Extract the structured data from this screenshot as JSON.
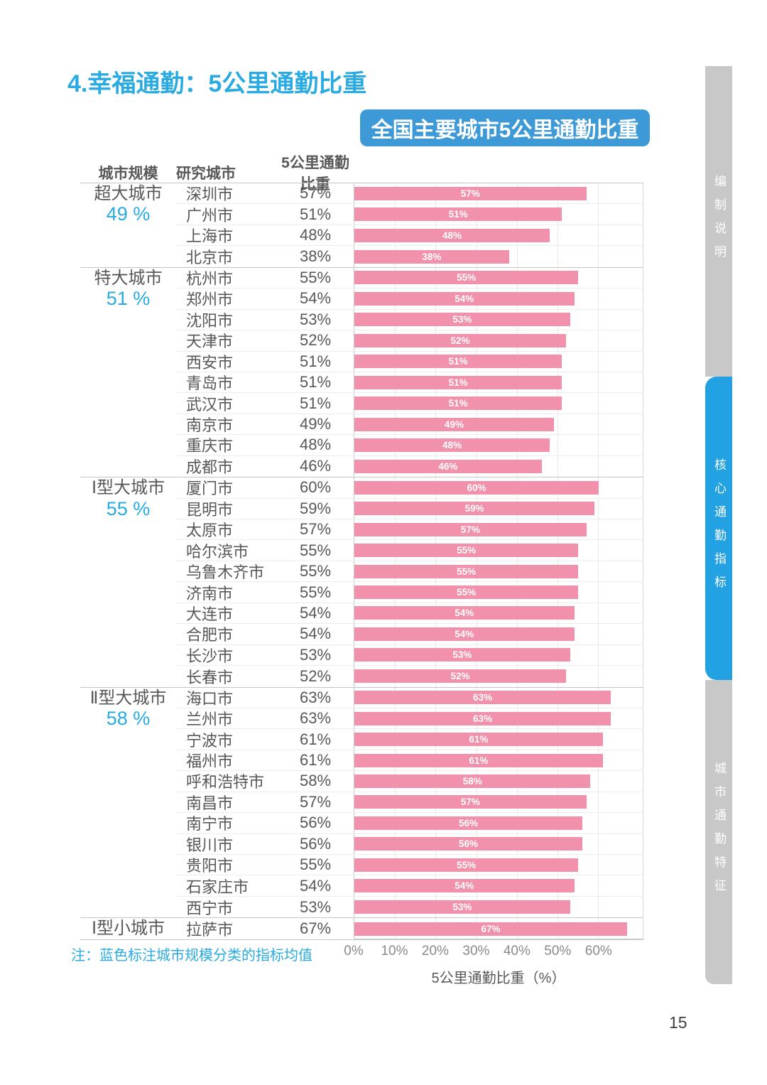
{
  "page": {
    "title": "4.幸福通勤：5公里通勤比重",
    "page_number": "15",
    "note": "注：蓝色标注城市规模分类的指标均值"
  },
  "banner": {
    "text": "全国主要城市5公里通勤比重"
  },
  "table": {
    "headers": [
      "城市规模",
      "研究城市",
      "5公里通勤比重"
    ]
  },
  "chart_data": {
    "type": "bar",
    "title": "全国主要城市5公里通勤比重",
    "xlabel": "5公里通勤比重（%）",
    "unit": "%",
    "xlim": [
      0,
      71
    ],
    "ticks": [
      0,
      10,
      20,
      30,
      40,
      50,
      60
    ],
    "grid": true,
    "bar_color": "#F191AC",
    "groups": [
      {
        "scale": "超大城市",
        "average": 49,
        "cities": [
          {
            "name": "深圳市",
            "value": 57
          },
          {
            "name": "广州市",
            "value": 51
          },
          {
            "name": "上海市",
            "value": 48
          },
          {
            "name": "北京市",
            "value": 38
          }
        ]
      },
      {
        "scale": "特大城市",
        "average": 51,
        "cities": [
          {
            "name": "杭州市",
            "value": 55
          },
          {
            "name": "郑州市",
            "value": 54
          },
          {
            "name": "沈阳市",
            "value": 53
          },
          {
            "name": "天津市",
            "value": 52
          },
          {
            "name": "西安市",
            "value": 51
          },
          {
            "name": "青岛市",
            "value": 51
          },
          {
            "name": "武汉市",
            "value": 51
          },
          {
            "name": "南京市",
            "value": 49
          },
          {
            "name": "重庆市",
            "value": 48
          },
          {
            "name": "成都市",
            "value": 46
          }
        ]
      },
      {
        "scale": "Ⅰ型大城市",
        "average": 55,
        "cities": [
          {
            "name": "厦门市",
            "value": 60
          },
          {
            "name": "昆明市",
            "value": 59
          },
          {
            "name": "太原市",
            "value": 57
          },
          {
            "name": "哈尔滨市",
            "value": 55
          },
          {
            "name": "乌鲁木齐市",
            "value": 55
          },
          {
            "name": "济南市",
            "value": 55
          },
          {
            "name": "大连市",
            "value": 54
          },
          {
            "name": "合肥市",
            "value": 54
          },
          {
            "name": "长沙市",
            "value": 53
          },
          {
            "name": "长春市",
            "value": 52
          }
        ]
      },
      {
        "scale": "Ⅱ型大城市",
        "average": 58,
        "cities": [
          {
            "name": "海口市",
            "value": 63
          },
          {
            "name": "兰州市",
            "value": 63
          },
          {
            "name": "宁波市",
            "value": 61
          },
          {
            "name": "福州市",
            "value": 61
          },
          {
            "name": "呼和浩特市",
            "value": 58
          },
          {
            "name": "南昌市",
            "value": 57
          },
          {
            "name": "南宁市",
            "value": 56
          },
          {
            "name": "银川市",
            "value": 56
          },
          {
            "name": "贵阳市",
            "value": 55
          },
          {
            "name": "石家庄市",
            "value": 54
          },
          {
            "name": "西宁市",
            "value": 53
          }
        ]
      },
      {
        "scale": "Ⅰ型小城市",
        "average": null,
        "cities": [
          {
            "name": "拉萨市",
            "value": 67
          }
        ]
      }
    ]
  },
  "sidebar": {
    "items": [
      {
        "label": "编制说明",
        "active": false
      },
      {
        "label": "核心通勤指标",
        "active": true
      },
      {
        "label": "城市通勤特征",
        "active": false
      }
    ]
  },
  "colors": {
    "accent_blue": "#29ABE2",
    "banner_blue": "#3D9AD6",
    "bar_pink": "#F191AC",
    "sidebar_gray": "#C8C8C8",
    "sidebar_active_blue": "#23A2E3"
  }
}
